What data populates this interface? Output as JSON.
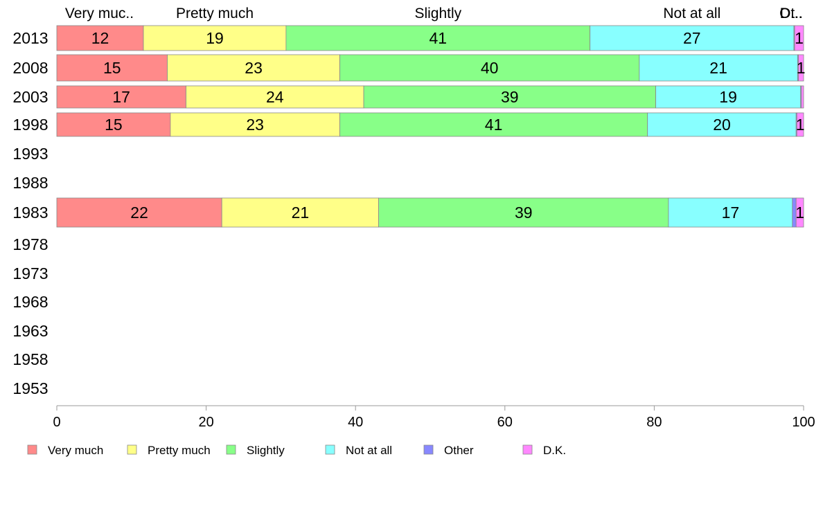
{
  "chart_data": {
    "type": "bar",
    "orientation": "horizontal",
    "stacked": true,
    "title": "",
    "xlabel": "",
    "ylabel": "",
    "xlim": [
      0,
      100
    ],
    "x_ticks": [
      "0",
      "20",
      "40",
      "60",
      "80",
      "100"
    ],
    "categories": [
      "2013",
      "2008",
      "2003",
      "1998",
      "1993",
      "1988",
      "1983",
      "1978",
      "1973",
      "1968",
      "1963",
      "1958",
      "1953"
    ],
    "top_labels": [
      "Very muc..",
      "Pretty much",
      "Slightly",
      "Not at all",
      "Ot..",
      "D..."
    ],
    "legend_position": "bottom",
    "grid": false,
    "series": [
      {
        "name": "Very much",
        "color": "#ff8a8a",
        "values": [
          11.6,
          14.8,
          17.3,
          15.2,
          null,
          null,
          22.1,
          null,
          null,
          null,
          null,
          null,
          null
        ],
        "labels": [
          "12",
          "15",
          "17",
          "15",
          "",
          "",
          "22",
          "",
          "",
          "",
          "",
          "",
          ""
        ]
      },
      {
        "name": "Pretty much",
        "color": "#ffff88",
        "values": [
          19.1,
          23.1,
          23.8,
          22.7,
          null,
          null,
          21.0,
          null,
          null,
          null,
          null,
          null,
          null
        ],
        "labels": [
          "19",
          "23",
          "24",
          "23",
          "",
          "",
          "21",
          "",
          "",
          "",
          "",
          "",
          ""
        ]
      },
      {
        "name": "Slightly",
        "color": "#88ff88",
        "values": [
          40.7,
          40.1,
          39.1,
          41.2,
          null,
          null,
          38.8,
          null,
          null,
          null,
          null,
          null,
          null
        ],
        "labels": [
          "41",
          "40",
          "39",
          "41",
          "",
          "",
          "39",
          "",
          "",
          "",
          "",
          "",
          ""
        ]
      },
      {
        "name": "Not at all",
        "color": "#88ffff",
        "values": [
          27.3,
          21.2,
          19.4,
          19.9,
          null,
          null,
          16.6,
          null,
          null,
          null,
          null,
          null,
          null
        ],
        "labels": [
          "27",
          "21",
          "19",
          "20",
          "",
          "",
          "17",
          "",
          "",
          "",
          "",
          "",
          ""
        ]
      },
      {
        "name": "Other",
        "color": "#8888ff",
        "values": [
          0.1,
          0.1,
          0.1,
          0.1,
          null,
          null,
          0.5,
          null,
          null,
          null,
          null,
          null,
          null
        ],
        "labels": [
          "",
          "",
          "",
          "",
          "",
          "",
          "",
          "",
          "",
          "",
          "",
          "",
          ""
        ]
      },
      {
        "name": "D.K.",
        "color": "#ff88ff",
        "values": [
          1.2,
          0.7,
          0.3,
          0.9,
          null,
          null,
          1.0,
          null,
          null,
          null,
          null,
          null,
          null
        ],
        "labels": [
          "1",
          "1",
          "",
          "1",
          "",
          "",
          "1",
          "",
          "",
          "",
          "",
          "",
          ""
        ]
      }
    ]
  }
}
